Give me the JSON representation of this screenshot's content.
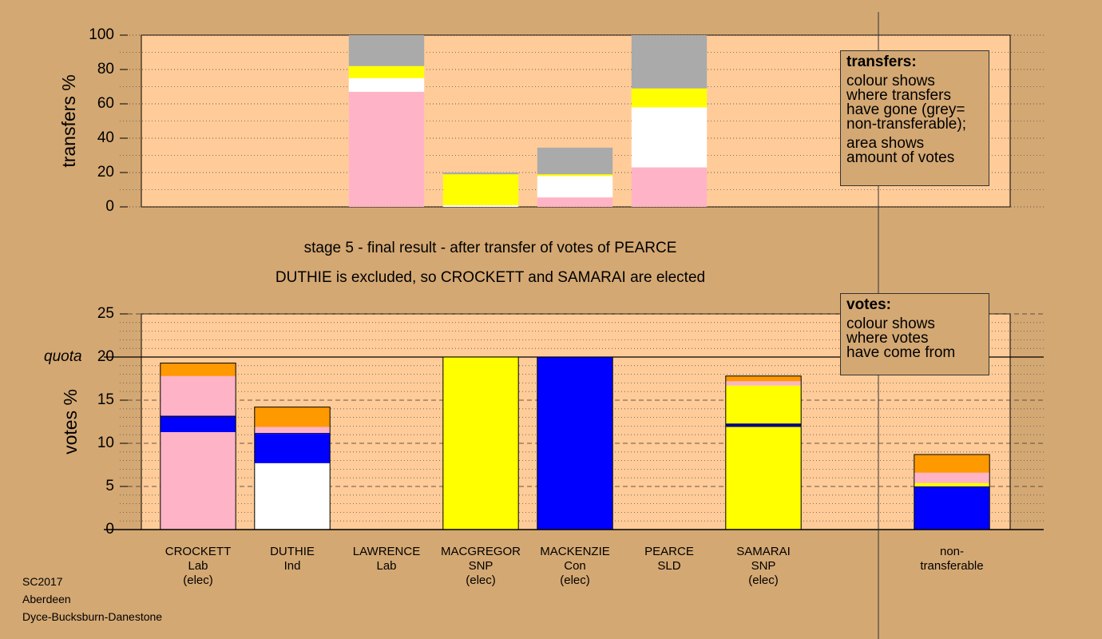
{
  "chart_data": [
    {
      "type": "stacked-bar",
      "ylabel": "transfers %",
      "ylim": [
        0,
        100
      ],
      "yticks": [
        0,
        20,
        40,
        60,
        80,
        100
      ],
      "grid": true,
      "grid_subdivisions": 2,
      "plot_color": "#ffcc99",
      "stacks": [
        [],
        [],
        [
          {
            "color": "#ffb3c6",
            "value": 67
          },
          {
            "color": "#ffffff",
            "value": 8
          },
          {
            "color": "#ffff00",
            "value": 7
          },
          {
            "color": "#aaaaaa",
            "value": 18
          }
        ],
        [
          {
            "color": "#ffffff",
            "value": 1
          },
          {
            "color": "#ffff00",
            "value": 18
          },
          {
            "color": "#aaaaaa",
            "value": 1
          }
        ],
        [
          {
            "color": "#ffb3c6",
            "value": 5.5
          },
          {
            "color": "#ffffff",
            "value": 12.5
          },
          {
            "color": "#ffff00",
            "value": 1
          },
          {
            "color": "#aaaaaa",
            "value": 15.5
          }
        ],
        [
          {
            "color": "#ffb3c6",
            "value": 23
          },
          {
            "color": "#ffffff",
            "value": 35
          },
          {
            "color": "#ffff00",
            "value": 11
          },
          {
            "color": "#aaaaaa",
            "value": 31
          }
        ],
        [],
        [],
        []
      ],
      "note": {
        "heading": "transfers:",
        "lines": [
          "colour shows\nwhere transfers\nhave gone (grey=\nnon-transferable);",
          "area shows\namount of votes"
        ]
      }
    },
    {
      "type": "stacked-bar",
      "title": "stage 5 - final result - after transfer of votes of PEARCE",
      "subtitle": "DUTHIE is excluded, so CROCKETT and SAMARAI are elected",
      "ylabel": "votes %",
      "ylim": [
        0,
        25
      ],
      "yticks": [
        0,
        5,
        10,
        15,
        20,
        25
      ],
      "grid": true,
      "grid_subdivisions": 5,
      "plot_color": "#ffcc99",
      "quota": {
        "value": 20,
        "label": "quota"
      },
      "categories": [
        "CROCKETT\nLab\n(elec)",
        "DUTHIE\nInd",
        "LAWRENCE\nLab",
        "MACGREGOR\nSNP\n(elec)",
        "MACKENZIE\nCon\n(elec)",
        "PEARCE\nSLD",
        "SAMARAI\nSNP\n(elec)",
        null,
        "non-\ntransferable"
      ],
      "stacks": [
        [
          {
            "color": "#ffb3c6",
            "value": 11.3
          },
          {
            "color": "#0000ff",
            "value": 1.7
          },
          {
            "color": "#000080",
            "value": 0.2
          },
          {
            "color": "#ffb3c6",
            "value": 4.6
          },
          {
            "color": "#ff9900",
            "value": 1.5
          }
        ],
        [
          {
            "color": "#ffffff",
            "value": 7.7
          },
          {
            "color": "#0000ff",
            "value": 3.4
          },
          {
            "color": "#000080",
            "value": 0.1
          },
          {
            "color": "#ffb3c6",
            "value": 0.7
          },
          {
            "color": "#ff9900",
            "value": 2.3
          }
        ],
        [],
        [
          {
            "color": "#ffff00",
            "value": 20
          }
        ],
        [
          {
            "color": "#0000ff",
            "value": 20
          }
        ],
        [],
        [
          {
            "color": "#ffff00",
            "value": 11.9
          },
          {
            "color": "#000080",
            "value": 0.4
          },
          {
            "color": "#ffff00",
            "value": 4.4
          },
          {
            "color": "#ffb3c6",
            "value": 0.5
          },
          {
            "color": "#ff9900",
            "value": 0.6
          }
        ],
        [],
        [
          {
            "color": "#0000ff",
            "value": 4.9
          },
          {
            "color": "#000080",
            "value": 0.1
          },
          {
            "color": "#ffff00",
            "value": 0.4
          },
          {
            "color": "#ffb3c6",
            "value": 1.2
          },
          {
            "color": "#ff9900",
            "value": 2.1
          }
        ]
      ],
      "note": {
        "heading": "votes:",
        "lines": [
          "colour shows\nwhere votes\nhave come from"
        ]
      }
    }
  ],
  "footer": [
    "SC2017",
    "Aberdeen",
    "Dyce-Bucksburn-Danestone"
  ]
}
